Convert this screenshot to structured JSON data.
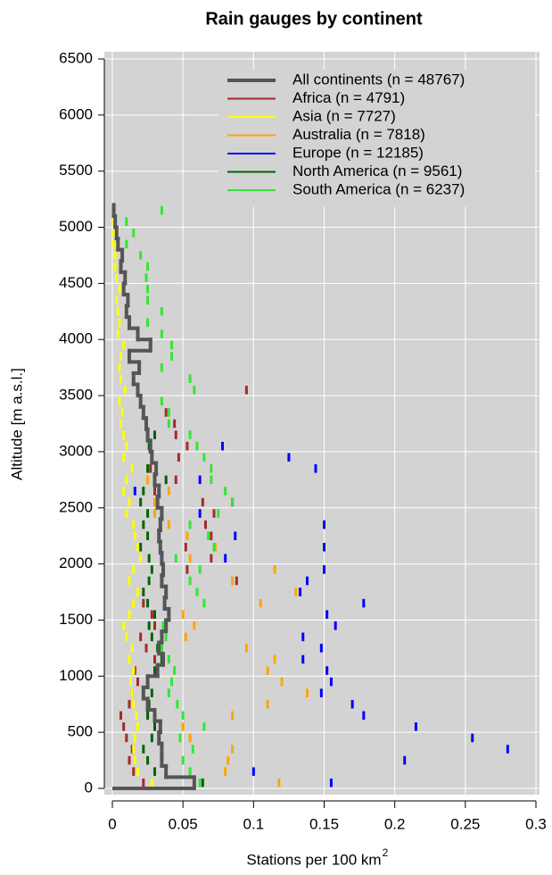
{
  "chart_data": {
    "type": "dash-profile",
    "title": "Rain gauges by continent",
    "x_label": "Stations per 100 km",
    "x_label_superscript": "2",
    "y_label": "Altitude [m a.s.l.]",
    "xlim": [
      0,
      0.3
    ],
    "xticks": [
      0,
      0.05,
      0.1,
      0.15,
      0.2,
      0.25,
      0.3
    ],
    "ylim": [
      0,
      6500
    ],
    "yticks": [
      0,
      500,
      1000,
      1500,
      2000,
      2500,
      3000,
      3500,
      4000,
      4500,
      5000,
      5500,
      6000,
      6500
    ],
    "grid": true,
    "legend": "top-right",
    "background": "#d3d3d3",
    "bin_height": 100,
    "series": [
      {
        "name": "All continents (n = 48767)",
        "color": "#555555",
        "type": "step",
        "altitudes": [
          0,
          100,
          200,
          300,
          400,
          500,
          600,
          700,
          800,
          900,
          1000,
          1100,
          1200,
          1300,
          1400,
          1500,
          1600,
          1700,
          1800,
          1900,
          2000,
          2100,
          2200,
          2300,
          2400,
          2500,
          2600,
          2700,
          2800,
          2900,
          3000,
          3100,
          3200,
          3300,
          3400,
          3500,
          3600,
          3700,
          3800,
          3900,
          4000,
          4100,
          4200,
          4300,
          4400,
          4500,
          4600,
          4700,
          4800,
          4900,
          5000,
          5100
        ],
        "values": [
          0.058,
          0.038,
          0.035,
          0.035,
          0.033,
          0.034,
          0.03,
          0.025,
          0.022,
          0.025,
          0.032,
          0.036,
          0.033,
          0.035,
          0.038,
          0.04,
          0.037,
          0.038,
          0.035,
          0.036,
          0.035,
          0.034,
          0.033,
          0.034,
          0.035,
          0.032,
          0.033,
          0.03,
          0.031,
          0.028,
          0.027,
          0.025,
          0.024,
          0.022,
          0.02,
          0.018,
          0.015,
          0.019,
          0.012,
          0.027,
          0.018,
          0.012,
          0.01,
          0.011,
          0.008,
          0.009,
          0.006,
          0.007,
          0.004,
          0.003,
          0.002,
          0.001
        ]
      },
      {
        "name": "Africa (n = 4791)",
        "color": "#a52a2a",
        "type": "dash",
        "altitudes": [
          0,
          100,
          200,
          300,
          400,
          500,
          600,
          700,
          800,
          900,
          1000,
          1100,
          1200,
          1300,
          1400,
          1500,
          1600,
          1700,
          1800,
          1900,
          2000,
          2100,
          2200,
          2300,
          2400,
          2500,
          2600,
          2700,
          2800,
          2900,
          3000,
          3100,
          3200,
          3300,
          3500
        ],
        "values": [
          0.022,
          0.015,
          0.012,
          0.014,
          0.01,
          0.008,
          0.006,
          0.012,
          0.014,
          0.018,
          0.016,
          0.03,
          0.024,
          0.02,
          0.03,
          0.028,
          0.022,
          0.038,
          0.088,
          0.053,
          0.07,
          0.052,
          0.07,
          0.066,
          0.072,
          0.064,
          0.03,
          0.045,
          0.027,
          0.047,
          0.053,
          0.045,
          0.044,
          0.038,
          0.095
        ]
      },
      {
        "name": "Asia (n = 7727)",
        "color": "#ffff00",
        "type": "dash",
        "altitudes": [
          0,
          100,
          200,
          300,
          400,
          500,
          600,
          700,
          800,
          900,
          1000,
          1100,
          1200,
          1300,
          1400,
          1500,
          1600,
          1700,
          1800,
          1900,
          2000,
          2100,
          2200,
          2300,
          2400,
          2500,
          2600,
          2700,
          2800,
          2900,
          3000,
          3100,
          3200,
          3300,
          3400,
          3500,
          3600,
          3700,
          3800,
          3900,
          4000,
          4100,
          4200,
          4300,
          4400,
          4500,
          4600,
          4700,
          4800,
          4900,
          5000
        ],
        "values": [
          0.028,
          0.018,
          0.016,
          0.015,
          0.016,
          0.018,
          0.017,
          0.015,
          0.014,
          0.013,
          0.015,
          0.012,
          0.014,
          0.01,
          0.008,
          0.012,
          0.015,
          0.018,
          0.012,
          0.015,
          0.02,
          0.018,
          0.016,
          0.015,
          0.01,
          0.012,
          0.008,
          0.01,
          0.014,
          0.008,
          0.01,
          0.008,
          0.006,
          0.007,
          0.005,
          0.009,
          0.006,
          0.005,
          0.006,
          0.008,
          0.004,
          0.005,
          0.004,
          0.003,
          0.005,
          0.003,
          0.002,
          0.002,
          0.001,
          0.001,
          0.001
        ]
      },
      {
        "name": "Australia (n = 7818)",
        "color": "#ffa500",
        "type": "dash",
        "altitudes": [
          0,
          100,
          200,
          300,
          400,
          500,
          600,
          700,
          800,
          900,
          1000,
          1100,
          1200,
          1300,
          1400,
          1500,
          1600,
          1700,
          1800,
          1900,
          2000,
          2100,
          2200,
          2300,
          2400,
          2500,
          2600,
          2700
        ],
        "values": [
          0.118,
          0.08,
          0.082,
          0.085,
          0.055,
          0.05,
          0.085,
          0.11,
          0.138,
          0.12,
          0.11,
          0.115,
          0.095,
          0.052,
          0.058,
          0.05,
          0.105,
          0.13,
          0.085,
          0.115,
          0.055,
          0.073,
          0.053,
          0.04,
          0.03,
          0.03,
          0.04,
          0.025
        ]
      },
      {
        "name": "Europe (n = 12185)",
        "color": "#0000ff",
        "type": "dash",
        "altitudes": [
          0,
          100,
          200,
          300,
          400,
          500,
          600,
          700,
          800,
          900,
          1000,
          1100,
          1200,
          1300,
          1400,
          1500,
          1600,
          1700,
          1800,
          1900,
          2000,
          2100,
          2200,
          2300,
          2400,
          2500,
          2600,
          2700,
          2800,
          2900,
          3000
        ],
        "values": [
          0.155,
          0.1,
          0.207,
          0.28,
          0.255,
          0.215,
          0.178,
          0.17,
          0.148,
          0.155,
          0.152,
          0.135,
          0.148,
          0.135,
          0.158,
          0.152,
          0.178,
          0.133,
          0.138,
          0.15,
          0.08,
          0.15,
          0.087,
          0.15,
          0.062,
          0.085,
          0.016,
          0.062,
          0.144,
          0.125,
          0.078
        ]
      },
      {
        "name": "North America (n = 9561)",
        "color": "#006400",
        "type": "dash",
        "altitudes": [
          0,
          100,
          200,
          300,
          400,
          500,
          600,
          700,
          800,
          900,
          1000,
          1100,
          1200,
          1300,
          1400,
          1500,
          1600,
          1700,
          1800,
          1900,
          2000,
          2100,
          2200,
          2300,
          2400,
          2500,
          2600,
          2700,
          2800,
          2900,
          3000,
          3100
        ],
        "values": [
          0.064,
          0.03,
          0.025,
          0.022,
          0.028,
          0.03,
          0.025,
          0.026,
          0.028,
          0.025,
          0.03,
          0.035,
          0.032,
          0.028,
          0.026,
          0.03,
          0.025,
          0.022,
          0.026,
          0.028,
          0.026,
          0.02,
          0.025,
          0.022,
          0.025,
          0.02,
          0.022,
          0.038,
          0.025,
          0.028,
          0.026,
          0.03
        ]
      },
      {
        "name": "South America (n = 6237)",
        "color": "#33e633",
        "type": "dash",
        "altitudes": [
          0,
          100,
          200,
          300,
          400,
          500,
          600,
          700,
          800,
          900,
          1000,
          1100,
          1200,
          1300,
          1400,
          1500,
          1600,
          1700,
          1800,
          1900,
          2000,
          2100,
          2200,
          2300,
          2400,
          2500,
          2600,
          2700,
          2800,
          2900,
          3000,
          3100,
          3200,
          3300,
          3400,
          3500,
          3600,
          3700,
          3800,
          3900,
          4000,
          4100,
          4200,
          4300,
          4400,
          4500,
          4600,
          4700,
          4800,
          4900,
          5000,
          5100
        ],
        "values": [
          0.062,
          0.055,
          0.05,
          0.057,
          0.048,
          0.065,
          0.05,
          0.046,
          0.04,
          0.042,
          0.044,
          0.04,
          0.035,
          0.038,
          0.036,
          0.04,
          0.065,
          0.06,
          0.055,
          0.062,
          0.045,
          0.072,
          0.068,
          0.055,
          0.075,
          0.085,
          0.08,
          0.07,
          0.07,
          0.065,
          0.06,
          0.055,
          0.04,
          0.04,
          0.035,
          0.058,
          0.055,
          0.035,
          0.042,
          0.042,
          0.035,
          0.025,
          0.035,
          0.025,
          0.025,
          0.024,
          0.025,
          0.02,
          0.01,
          0.015,
          0.01,
          0.035
        ]
      }
    ]
  }
}
